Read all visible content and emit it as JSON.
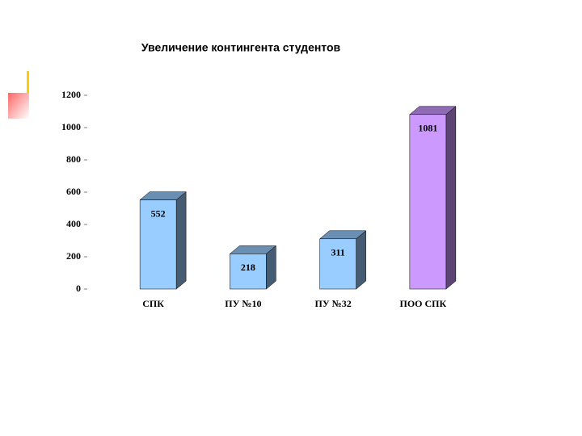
{
  "chart_data": {
    "type": "bar3d",
    "title": "Увеличение контингента студентов",
    "categories": [
      "СПК",
      "ПУ №10",
      "ПУ №32",
      "ПОО СПК"
    ],
    "values": [
      552,
      218,
      311,
      1081
    ],
    "colors": [
      "#99ccff",
      "#99ccff",
      "#99ccff",
      "#cc99ff"
    ],
    "ylim": [
      0,
      1200
    ],
    "yticks": [
      0,
      200,
      400,
      600,
      800,
      1000,
      1200
    ]
  }
}
